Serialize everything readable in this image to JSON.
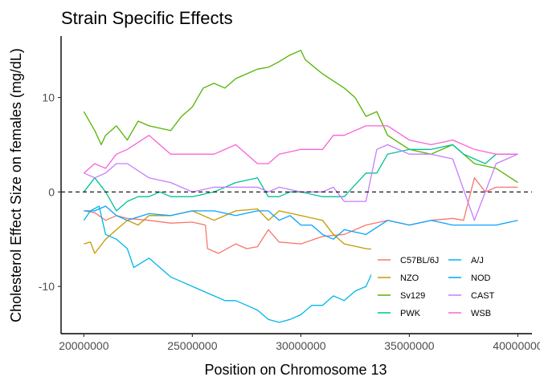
{
  "chart_data": {
    "type": "line",
    "title": "Strain Specific Effects",
    "xlabel": "Position on Chromosome 13",
    "ylabel": "Cholesterol Effect Size on females (mg/dL)",
    "xlim": [
      18950000,
      40650000
    ],
    "ylim": [
      -15,
      16.5
    ],
    "x_ticks": [
      20000000,
      25000000,
      30000000,
      35000000,
      40000000
    ],
    "x_tick_labels": [
      "20000000",
      "25000000",
      "30000000",
      "35000000",
      "40000000"
    ],
    "y_ticks": [
      -10,
      0,
      10
    ],
    "y_tick_labels": [
      "-10",
      "0",
      "10"
    ],
    "reference_line": {
      "y": 0,
      "style": "dashed",
      "color": "#000000"
    },
    "grid": false,
    "legend": {
      "position": "bottom-right",
      "columns": 2
    },
    "series": [
      {
        "name": "C57BL/6J",
        "color": "#F8766D",
        "x": [
          20000000,
          20500000,
          21000000,
          21500000,
          22000000,
          23000000,
          24000000,
          25000000,
          25600000,
          25700000,
          26200000,
          27000000,
          27500000,
          28000000,
          28500000,
          29000000,
          30000000,
          31000000,
          32000000,
          33000000,
          34000000,
          35000000,
          36000000,
          37000000,
          37500000,
          38000000,
          38500000,
          39000000,
          40000000
        ],
        "y": [
          -2,
          -2.2,
          -3,
          -2.5,
          -2.8,
          -3,
          -3.3,
          -3.2,
          -3.5,
          -6,
          -6.5,
          -5.5,
          -6,
          -5.8,
          -4,
          -5.3,
          -5.5,
          -4.7,
          -4.5,
          -3.5,
          -3,
          -3.5,
          -3,
          -2.8,
          -3,
          1.5,
          0,
          0.5,
          0.5
        ]
      },
      {
        "name": "NZO",
        "color": "#C49A00",
        "x": [
          20000000,
          20300000,
          20500000,
          21000000,
          21500000,
          22000000,
          22500000,
          23000000,
          24000000,
          25000000,
          26000000,
          27000000,
          28000000,
          28500000,
          29000000,
          30000000,
          31000000,
          31500000,
          32000000,
          33000000,
          34000000,
          35000000
        ],
        "y": [
          -5.5,
          -5.3,
          -6.5,
          -5,
          -4,
          -3,
          -3.5,
          -2.5,
          -2.5,
          -2,
          -3,
          -2,
          -1.8,
          -3,
          -2,
          -2.5,
          -3,
          -4.5,
          -5.5,
          -6,
          -6.2,
          -6.3
        ]
      },
      {
        "name": "Sv129",
        "color": "#53B400",
        "x": [
          20000000,
          20500000,
          20800000,
          21000000,
          21500000,
          22000000,
          22500000,
          23000000,
          24000000,
          24500000,
          25000000,
          25500000,
          26000000,
          26500000,
          27000000,
          27500000,
          28000000,
          28500000,
          29000000,
          29500000,
          30000000,
          30200000,
          31000000,
          32000000,
          32500000,
          33000000,
          33500000,
          34000000,
          35000000,
          36000000,
          37000000,
          38000000,
          39000000,
          40000000
        ],
        "y": [
          8.5,
          6.5,
          5,
          6,
          7,
          5.5,
          7.5,
          7,
          6.5,
          8,
          9,
          11,
          11.5,
          11,
          12,
          12.5,
          13,
          13.2,
          13.8,
          14.5,
          15,
          14,
          12.5,
          11,
          10,
          8,
          8.5,
          6,
          4.5,
          4,
          5,
          3,
          2.5,
          1
        ]
      },
      {
        "name": "PWK",
        "color": "#00C094",
        "x": [
          20000000,
          20500000,
          21000000,
          21500000,
          22000000,
          22500000,
          23000000,
          23500000,
          24000000,
          25000000,
          26000000,
          27000000,
          28000000,
          28500000,
          29000000,
          29500000,
          30000000,
          31000000,
          32000000,
          33000000,
          33500000,
          34000000,
          35000000,
          36000000,
          37000000,
          37500000,
          38000000,
          38500000,
          39000000,
          40000000
        ],
        "y": [
          0,
          1.5,
          0,
          -2,
          -1,
          -0.5,
          -0.5,
          0,
          -0.5,
          -0.5,
          0,
          1,
          1.5,
          -0.5,
          -0.5,
          0,
          0,
          -0.5,
          -0.5,
          2,
          2,
          4,
          4.5,
          4.5,
          5,
          4,
          3.5,
          3,
          4,
          4
        ]
      },
      {
        "name": "A/J",
        "color": "#00B6EB",
        "x": [
          20000000,
          20300000,
          20700000,
          21000000,
          21500000,
          22000000,
          22300000,
          23000000,
          24000000,
          24500000,
          25000000,
          25500000,
          26000000,
          26500000,
          27000000,
          27500000,
          28000000,
          28500000,
          29000000,
          29500000,
          30000000,
          30500000,
          31000000,
          31500000,
          32000000,
          32500000,
          33000000,
          33300000
        ],
        "y": [
          -3,
          -2,
          -1.5,
          -4.5,
          -5,
          -6,
          -8,
          -7,
          -9,
          -9.5,
          -10,
          -10.5,
          -11,
          -11.5,
          -11.5,
          -12,
          -12.5,
          -13.5,
          -13.8,
          -13.5,
          -13,
          -12,
          -12,
          -11,
          -11.5,
          -10.5,
          -10,
          -8.5
        ]
      },
      {
        "name": "NOD",
        "color": "#06A4FF",
        "x": [
          20000000,
          20500000,
          21000000,
          21500000,
          22000000,
          23000000,
          24000000,
          25000000,
          26000000,
          27000000,
          28000000,
          28500000,
          29000000,
          29500000,
          30000000,
          30500000,
          31000000,
          31500000,
          32000000,
          33000000,
          34000000,
          35000000,
          36000000,
          37000000,
          38000000,
          39000000,
          40000000
        ],
        "y": [
          -2,
          -2,
          -1.5,
          -2.5,
          -3,
          -2.3,
          -2.5,
          -2,
          -2,
          -2.5,
          -2,
          -2,
          -3,
          -2.5,
          -3.5,
          -3.5,
          -4.5,
          -5,
          -4,
          -4.5,
          -3,
          -3.5,
          -3,
          -3.5,
          -3.5,
          -3.5,
          -3
        ]
      },
      {
        "name": "CAST",
        "color": "#C77CFF",
        "x": [
          20000000,
          20500000,
          21000000,
          21500000,
          22000000,
          23000000,
          24000000,
          25000000,
          26000000,
          27000000,
          28000000,
          28500000,
          29000000,
          30000000,
          31000000,
          31500000,
          32000000,
          33000000,
          33500000,
          34000000,
          35000000,
          36000000,
          37000000,
          38000000,
          39000000,
          40000000
        ],
        "y": [
          2,
          1.5,
          2,
          3,
          3,
          1.5,
          1,
          0,
          0.5,
          0.5,
          0.5,
          0,
          0.5,
          0,
          0,
          0.5,
          -1,
          -1,
          4.5,
          5,
          4,
          4,
          3.5,
          -3,
          3,
          4
        ]
      },
      {
        "name": "WSB",
        "color": "#FB61D7",
        "x": [
          20000000,
          20500000,
          21000000,
          21500000,
          22000000,
          23000000,
          24000000,
          25000000,
          26000000,
          27000000,
          28000000,
          28500000,
          29000000,
          30000000,
          31000000,
          31500000,
          32000000,
          33000000,
          34000000,
          35000000,
          36000000,
          37000000,
          38000000,
          39000000,
          40000000
        ],
        "y": [
          2,
          3,
          2.5,
          4,
          4.5,
          6,
          4,
          4,
          4,
          5,
          3,
          3,
          4,
          4.5,
          4.5,
          6,
          6,
          7,
          7,
          5.5,
          5,
          5.5,
          4.5,
          4,
          4
        ]
      }
    ]
  }
}
